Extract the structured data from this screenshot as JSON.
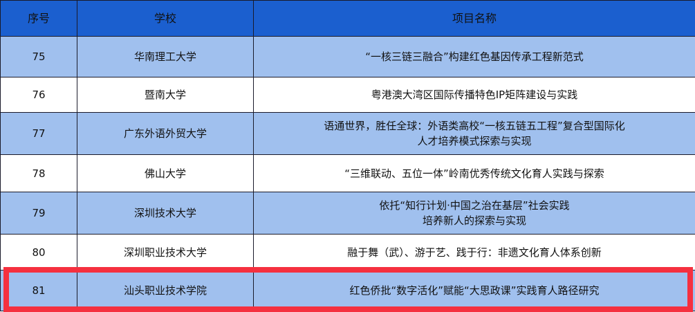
{
  "table": {
    "headers": [
      "序号",
      "学校",
      "项目名称"
    ],
    "rows": [
      {
        "no": "75",
        "school": "华南理工大学",
        "project": [
          "“一核三链三融合”构建红色基因传承工程新范式"
        ]
      },
      {
        "no": "76",
        "school": "暨南大学",
        "project": [
          "粤港澳大湾区国际传播特色IP矩阵建设与实践"
        ]
      },
      {
        "no": "77",
        "school": "广东外语外贸大学",
        "project": [
          "语通世界，胜任全球：外语类高校“一核五链五工程”复合型国际化",
          "人才培养模式探索与实现"
        ]
      },
      {
        "no": "78",
        "school": "佛山大学",
        "project": [
          "“三维联动、五位一体”岭南优秀传统文化育人实践与探索"
        ]
      },
      {
        "no": "79",
        "school": "深圳技术大学",
        "project": [
          "依托“知行计划·中国之治在基层”社会实践",
          "培养新人的探索与实现"
        ]
      },
      {
        "no": "80",
        "school": "深圳职业技术大学",
        "project": [
          "融于舞（武）、游于艺、践于行：非遗文化育人体系创新"
        ]
      },
      {
        "no": "81",
        "school": "汕头职业技术学院",
        "project": [
          "红色侨批“数字活化”赋能“大思政课”实践育人路径研究"
        ]
      }
    ],
    "highlighted_row": "81"
  },
  "colors": {
    "header": "#1b5fcf",
    "row_blue": "#a0c0ee",
    "highlight": "#f5303f"
  }
}
